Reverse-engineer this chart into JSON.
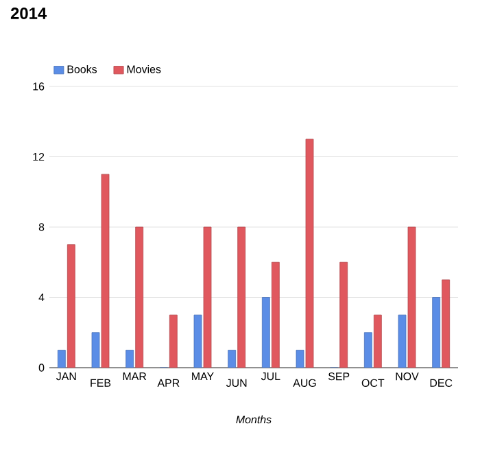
{
  "chart_data": {
    "type": "bar",
    "title": "2014",
    "xlabel": "Months",
    "categories": [
      "JAN",
      "FEB",
      "MAR",
      "APR",
      "MAY",
      "JUN",
      "JUL",
      "AUG",
      "SEP",
      "OCT",
      "NOV",
      "DEC"
    ],
    "series": [
      {
        "name": "Books",
        "color": "#5b8de6",
        "values": [
          1,
          2,
          1,
          0,
          3,
          1,
          4,
          1,
          0,
          2,
          3,
          4
        ]
      },
      {
        "name": "Movies",
        "color": "#e0585e",
        "values": [
          7,
          11,
          8,
          3,
          8,
          8,
          6,
          13,
          6,
          3,
          8,
          5
        ]
      }
    ],
    "ylim": [
      0,
      16
    ],
    "yticks": [
      0,
      4,
      8,
      12,
      16
    ],
    "grid": "y",
    "legend": "top left"
  }
}
